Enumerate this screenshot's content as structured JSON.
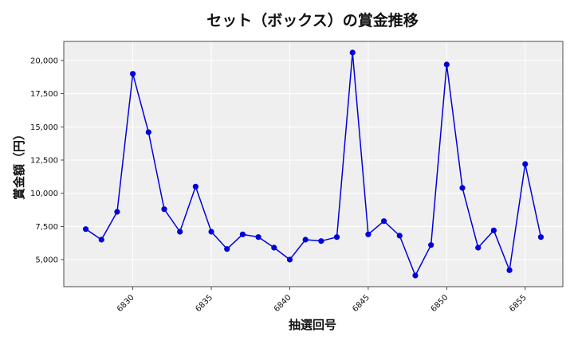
{
  "chart_data": {
    "type": "line",
    "title": "セット（ボックス）の賞金推移",
    "xlabel": "抽選回号",
    "ylabel": "賞金額（円）",
    "x": [
      6827,
      6828,
      6829,
      6830,
      6831,
      6832,
      6833,
      6834,
      6835,
      6836,
      6837,
      6838,
      6839,
      6840,
      6841,
      6842,
      6843,
      6844,
      6845,
      6846,
      6847,
      6848,
      6849,
      6850,
      6851,
      6852,
      6853,
      6854,
      6855,
      6856
    ],
    "series": [
      {
        "values": [
          7300,
          6500,
          8600,
          19000,
          14600,
          8800,
          7100,
          10500,
          7100,
          5800,
          6900,
          6700,
          5900,
          5000,
          6500,
          6400,
          6700,
          20600,
          6900,
          7900,
          6800,
          3800,
          6100,
          19700,
          10400,
          5900,
          7200,
          4200,
          12200,
          6700
        ],
        "color": "#0000dd"
      }
    ],
    "xticks": [
      6830,
      6835,
      6840,
      6845,
      6850,
      6855
    ],
    "xtick_labels": [
      "6830",
      "6835",
      "6840",
      "6845",
      "6850",
      "6855"
    ],
    "yticks": [
      5000,
      7500,
      10000,
      12500,
      15000,
      17500,
      20000
    ],
    "ytick_labels": [
      "5,000",
      "7,500",
      "10,000",
      "12,500",
      "15,000",
      "17,500",
      "20,000"
    ],
    "xlim": [
      6825.6,
      6857.4
    ],
    "ylim": [
      2960,
      21440
    ],
    "grid": true,
    "background": "#efefef"
  }
}
